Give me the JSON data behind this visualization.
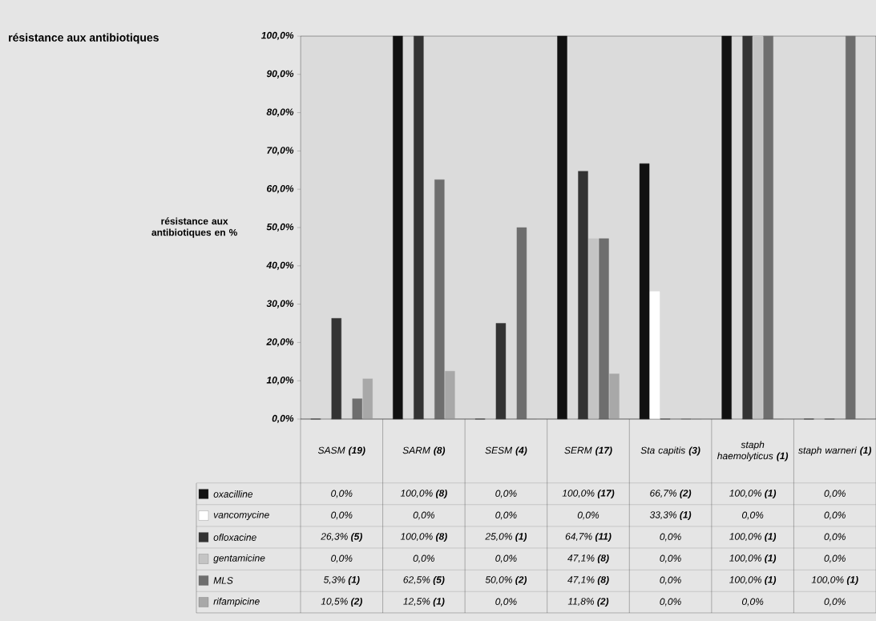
{
  "chart_data": {
    "type": "bar",
    "title": "résistance aux antibiotiques",
    "ylabel": "résistance aux antibiotiques en %",
    "categories": [
      "SASM **(19)**",
      "SARM **(8)**",
      "SESM **(4)**",
      "SERM **(17)**",
      "Sta capitis **(3)**",
      "staph haemolyticus **(1)**",
      "staph warneri **(1)**"
    ],
    "series": [
      {
        "name": "oxacilline",
        "color": "#111111",
        "values": [
          0,
          100,
          0,
          100,
          66.7,
          100,
          0
        ],
        "value_labels": [
          "0,0%",
          "100,0% **(8)**",
          "0,0%",
          "100,0% **(17)**",
          "66,7% **(2)**",
          "100,0% **(1)**",
          "0,0%"
        ]
      },
      {
        "name": "vancomycine",
        "color": "#ffffff",
        "values": [
          0,
          0,
          0,
          0,
          33.3,
          0,
          0
        ],
        "value_labels": [
          "0,0%",
          "0,0%",
          "0,0%",
          "0,0%",
          "33,3% **(1)**",
          "0,0%",
          "0,0%"
        ]
      },
      {
        "name": "ofloxacine",
        "color": "#333333",
        "values": [
          26.3,
          100,
          25,
          64.7,
          0,
          100,
          0
        ],
        "value_labels": [
          "26,3% **(5)**",
          "100,0% **(8)**",
          "25,0% **(1)**",
          "64,7% **(11)**",
          "0,0%",
          "100,0% **(1)**",
          "0,0%"
        ]
      },
      {
        "name": "gentamicine",
        "color": "#c4c4c4",
        "values": [
          0,
          0,
          0,
          47.1,
          0,
          100,
          0
        ],
        "value_labels": [
          "0,0%",
          "0,0%",
          "0,0%",
          "47,1% **(8)**",
          "0,0%",
          "100,0% **(1)**",
          "0,0%"
        ]
      },
      {
        "name": "MLS",
        "color": "#6e6e6e",
        "values": [
          5.3,
          62.5,
          50,
          47.1,
          0,
          100,
          100
        ],
        "value_labels": [
          "5,3% **(1)**",
          "62,5% **(5)**",
          "50,0% **(2)**",
          "47,1% **(8)**",
          "0,0%",
          "100,0% **(1)**",
          "100,0% **(1)**"
        ]
      },
      {
        "name": "rifampicine",
        "color": "#a8a8a8",
        "values": [
          10.5,
          12.5,
          0,
          11.8,
          0,
          0,
          0
        ],
        "value_labels": [
          "10,5% **(2)**",
          "12,5% **(1)**",
          "0,0%",
          "11,8% **(2)**",
          "0,0%",
          "0,0%",
          "0,0%"
        ]
      }
    ],
    "ylim": [
      0,
      100
    ],
    "yticks": [
      {
        "value": 0,
        "label": "0,0%"
      },
      {
        "value": 10,
        "label": "10,0%"
      },
      {
        "value": 20,
        "label": "20,0%"
      },
      {
        "value": 30,
        "label": "30,0%"
      },
      {
        "value": 40,
        "label": "40,0%"
      },
      {
        "value": 50,
        "label": "50,0%"
      },
      {
        "value": 60,
        "label": "60,0%"
      },
      {
        "value": 70,
        "label": "70,0%"
      },
      {
        "value": 80,
        "label": "80,0%"
      },
      {
        "value": 90,
        "label": "90,0%"
      },
      {
        "value": 100,
        "label": "100,0%"
      }
    ],
    "legend": "bottom"
  }
}
